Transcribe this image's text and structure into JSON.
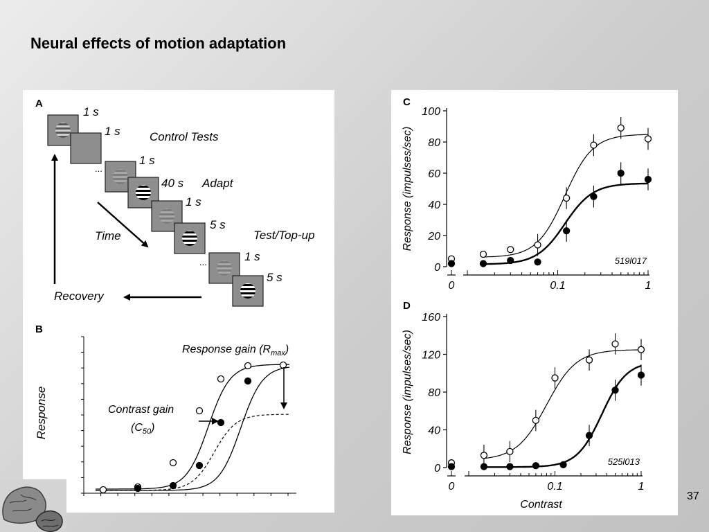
{
  "slide": {
    "title": "Neural effects of motion adaptation",
    "page_number": "37"
  },
  "panel_a": {
    "label": "A",
    "steps": [
      {
        "duration": "1 s",
        "grating": "medium"
      },
      {
        "duration": "1 s",
        "grating": "blank"
      },
      {
        "duration": "1 s",
        "grating": "faint"
      },
      {
        "duration": "40 s",
        "grating": "strong"
      },
      {
        "duration": "1 s",
        "grating": "faint"
      },
      {
        "duration": "5 s",
        "grating": "strong"
      },
      {
        "duration": "1 s",
        "grating": "faint"
      },
      {
        "duration": "5 s",
        "grating": "strong"
      }
    ],
    "ellipsis": "...",
    "control_tests": "Control Tests",
    "adapt": "Adapt",
    "test_topup": "Test/Top-up",
    "time": "Time",
    "recovery": "Recovery"
  },
  "panel_b": {
    "label": "B",
    "ylabel": "Response",
    "response_gain_label": "Response gain (R",
    "response_gain_sub": "max",
    "response_gain_close": ")",
    "contrast_gain_label": "Contrast gain",
    "contrast_gain_c": "(C",
    "contrast_gain_sub": "50",
    "contrast_gain_close": ")"
  },
  "chart_data": [
    {
      "panel": "C",
      "type": "scatter",
      "xlabel": "",
      "ylabel": "Response (impulses/sec)",
      "x_scale": "log",
      "x_ticks": [
        "0",
        "0.1",
        "1"
      ],
      "y_ticks": [
        "0",
        "20",
        "40",
        "60",
        "80",
        "100"
      ],
      "ylim": [
        0,
        100
      ],
      "annotation": "519l017",
      "fit": {
        "c50": 0.12,
        "n": 2.8
      },
      "series": [
        {
          "marker": "open",
          "offset": 6,
          "rmax": 79,
          "points": [
            {
              "x": 0,
              "y": 5
            },
            {
              "x": 0.015,
              "y": 8
            },
            {
              "x": 0.03,
              "y": 11
            },
            {
              "x": 0.06,
              "y": 14
            },
            {
              "x": 0.125,
              "y": 44
            },
            {
              "x": 0.25,
              "y": 78
            },
            {
              "x": 0.5,
              "y": 89
            },
            {
              "x": 1,
              "y": 82
            }
          ]
        },
        {
          "marker": "filled",
          "offset": 1.5,
          "rmax": 52,
          "points": [
            {
              "x": 0,
              "y": 2
            },
            {
              "x": 0.015,
              "y": 2
            },
            {
              "x": 0.03,
              "y": 4
            },
            {
              "x": 0.06,
              "y": 3
            },
            {
              "x": 0.125,
              "y": 23
            },
            {
              "x": 0.25,
              "y": 45
            },
            {
              "x": 0.5,
              "y": 60
            },
            {
              "x": 1,
              "y": 56
            }
          ]
        }
      ]
    },
    {
      "panel": "D",
      "type": "scatter",
      "xlabel": "Contrast",
      "ylabel": "Response (impulses/sec)",
      "x_scale": "log",
      "x_ticks": [
        "0",
        "0.1",
        "1"
      ],
      "y_ticks": [
        "0",
        "40",
        "80",
        "120",
        "160"
      ],
      "ylim": [
        0,
        160
      ],
      "annotation": "525l013",
      "series": [
        {
          "marker": "open",
          "offset": 8,
          "rmax": 117,
          "c50": 0.08,
          "n": 2.5,
          "points": [
            {
              "x": 0,
              "y": 5
            },
            {
              "x": 0.015,
              "y": 13
            },
            {
              "x": 0.03,
              "y": 17
            },
            {
              "x": 0.06,
              "y": 50
            },
            {
              "x": 0.1,
              "y": 95
            },
            {
              "x": 0.25,
              "y": 114
            },
            {
              "x": 0.5,
              "y": 131
            },
            {
              "x": 1,
              "y": 125
            }
          ]
        },
        {
          "marker": "filled",
          "offset": 0.5,
          "rmax": 112,
          "c50": 0.35,
          "n": 3.0,
          "points": [
            {
              "x": 0,
              "y": 1
            },
            {
              "x": 0.015,
              "y": 1
            },
            {
              "x": 0.03,
              "y": 1
            },
            {
              "x": 0.06,
              "y": 2
            },
            {
              "x": 0.125,
              "y": 3
            },
            {
              "x": 0.25,
              "y": 34
            },
            {
              "x": 0.5,
              "y": 82
            },
            {
              "x": 1,
              "y": 98
            }
          ]
        }
      ]
    }
  ]
}
